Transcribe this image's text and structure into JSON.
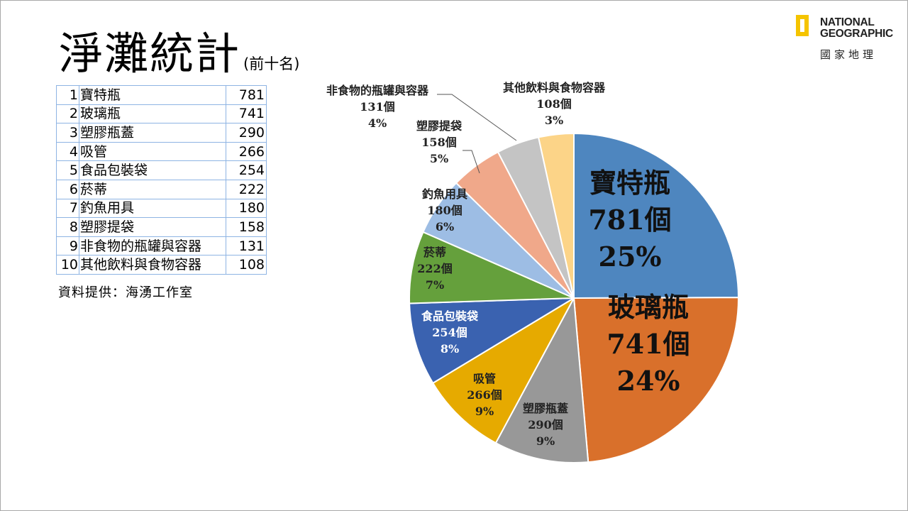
{
  "slide": {
    "title": "淨灘統計",
    "subtitle": "(前十名)",
    "source": "資料提供：海湧工作室"
  },
  "logo": {
    "line1": "NATIONAL",
    "line2": "GEOGRAPHIC",
    "line3": "國家地理",
    "accent_color": "#f5c400"
  },
  "table": {
    "rows": [
      {
        "rank": "1",
        "name": "寶特瓶",
        "value": "781"
      },
      {
        "rank": "2",
        "name": "玻璃瓶",
        "value": "741"
      },
      {
        "rank": "3",
        "name": "塑膠瓶蓋",
        "value": "290"
      },
      {
        "rank": "4",
        "name": "吸管",
        "value": "266"
      },
      {
        "rank": "5",
        "name": "食品包裝袋",
        "value": "254"
      },
      {
        "rank": "6",
        "name": "菸蒂",
        "value": "222"
      },
      {
        "rank": "7",
        "name": "釣魚用具",
        "value": "180"
      },
      {
        "rank": "8",
        "name": "塑膠提袋",
        "value": "158"
      },
      {
        "rank": "9",
        "name": "非食物的瓶罐與容器",
        "value": "131"
      },
      {
        "rank": "10",
        "name": "其他飲料與食物容器",
        "value": "108"
      }
    ]
  },
  "chart_data": {
    "type": "pie",
    "unit": "個",
    "slices": [
      {
        "name": "寶特瓶",
        "value": 781,
        "count_label": "781個",
        "percent_label": "25%",
        "color": "#4e86bf"
      },
      {
        "name": "玻璃瓶",
        "value": 741,
        "count_label": "741個",
        "percent_label": "24%",
        "color": "#d9702b"
      },
      {
        "name": "塑膠瓶蓋",
        "value": 290,
        "count_label": "290個",
        "percent_label": "9%",
        "color": "#989898"
      },
      {
        "name": "吸管",
        "value": 266,
        "count_label": "266個",
        "percent_label": "9%",
        "color": "#e6aa00"
      },
      {
        "name": "食品包裝袋",
        "value": 254,
        "count_label": "254個",
        "percent_label": "8%",
        "color": "#3a62b0"
      },
      {
        "name": "菸蒂",
        "value": 222,
        "count_label": "222個",
        "percent_label": "7%",
        "color": "#65a03c"
      },
      {
        "name": "釣魚用具",
        "value": 180,
        "count_label": "180個",
        "percent_label": "6%",
        "color": "#9dbde4"
      },
      {
        "name": "塑膠提袋",
        "value": 158,
        "count_label": "158個",
        "percent_label": "5%",
        "color": "#f0a88a"
      },
      {
        "name": "非食物的瓶罐與容器",
        "value": 131,
        "count_label": "131個",
        "percent_label": "4%",
        "color": "#c4c4c4"
      },
      {
        "name": "其他飲料與食物容器",
        "value": 108,
        "count_label": "108個",
        "percent_label": "3%",
        "color": "#fcd488"
      }
    ]
  }
}
